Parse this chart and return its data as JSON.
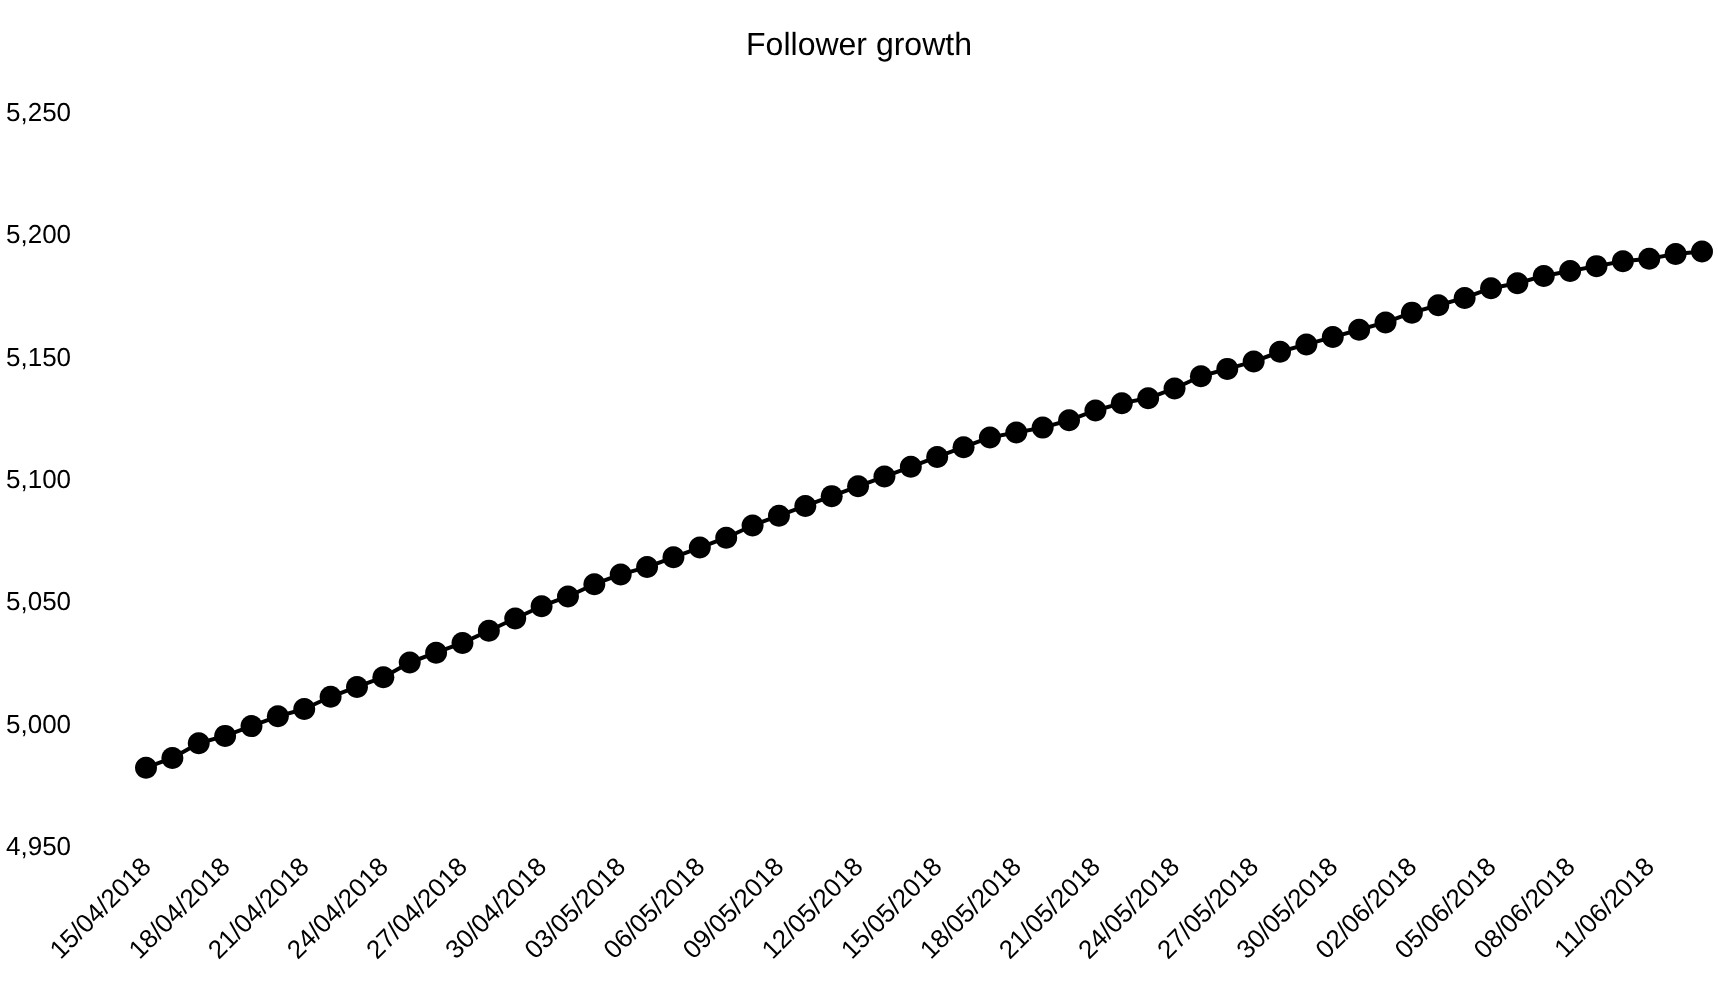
{
  "chart_data": {
    "type": "line",
    "title": "Follower growth",
    "categories": [
      "15/04/2018",
      null,
      null,
      "18/04/2018",
      null,
      null,
      "21/04/2018",
      null,
      null,
      "24/04/2018",
      null,
      null,
      "27/04/2018",
      null,
      null,
      "30/04/2018",
      null,
      null,
      "03/05/2018",
      null,
      null,
      "06/05/2018",
      null,
      null,
      "09/05/2018",
      null,
      null,
      "12/05/2018",
      null,
      null,
      "15/05/2018",
      null,
      null,
      "18/05/2018",
      null,
      null,
      "21/05/2018",
      null,
      null,
      "24/05/2018",
      null,
      null,
      "27/05/2018",
      null,
      null,
      "30/05/2018",
      null,
      null,
      "02/06/2018",
      null,
      null,
      "05/06/2018",
      null,
      null,
      "08/06/2018",
      null,
      null,
      "11/06/2018",
      null,
      null
    ],
    "series": [
      {
        "color": "#000000",
        "values": [
          4982,
          4986,
          4992,
          4995,
          4999,
          5003,
          5006,
          5011,
          5015,
          5019,
          5025,
          5029,
          5033,
          5038,
          5043,
          5048,
          5052,
          5057,
          5061,
          5064,
          5068,
          5072,
          5076,
          5081,
          5085,
          5089,
          5093,
          5097,
          5101,
          5105,
          5109,
          5113,
          5117,
          5119,
          5121,
          5124,
          5128,
          5131,
          5133,
          5137,
          5142,
          5145,
          5148,
          5152,
          5155,
          5158,
          5161,
          5164,
          5168,
          5171,
          5174,
          5178,
          5180,
          5183,
          5185,
          5187,
          5189,
          5190,
          5192,
          5193
        ]
      }
    ],
    "ylim": [
      4950,
      5250
    ],
    "yticks": [
      {
        "value": 4950,
        "label": "4,950"
      },
      {
        "value": 5000,
        "label": "5,000"
      },
      {
        "value": 5050,
        "label": "5,050"
      },
      {
        "value": 5100,
        "label": "5,100"
      },
      {
        "value": 5150,
        "label": "5,150"
      },
      {
        "value": 5200,
        "label": "5,200"
      },
      {
        "value": 5250,
        "label": "5,250"
      }
    ],
    "marker": "circle",
    "line_style": "solid"
  }
}
